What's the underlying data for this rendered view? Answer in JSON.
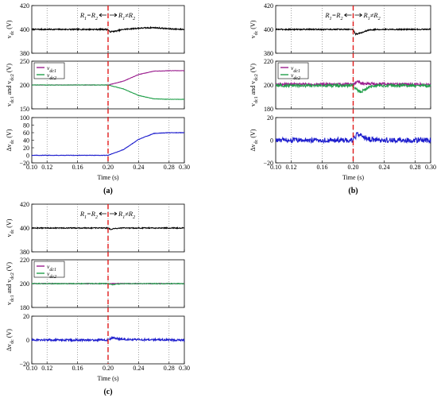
{
  "chart_data": [
    {
      "type": "line",
      "caption": "(a)",
      "xlabel": "Time (s)",
      "xlim": [
        0.1,
        0.3
      ],
      "x_ticks": [
        "0.10",
        "0.12",
        "0.16",
        "0.20",
        "0.24",
        "0.28",
        "0.30"
      ],
      "event_time": 0.2,
      "annotation_left": "R1=R2",
      "annotation_right": "R1≠R2",
      "subplots": [
        {
          "ylabel": "vdc (V)",
          "ylim": [
            380,
            420
          ],
          "y_ticks": [
            "420",
            "400",
            "380"
          ],
          "series": [
            {
              "color": "#000000",
              "points": [
                [
                  0.1,
                  400
                ],
                [
                  0.2,
                  400
                ],
                [
                  0.202,
                  398
                ],
                [
                  0.21,
                  398.5
                ],
                [
                  0.22,
                  400
                ],
                [
                  0.24,
                  401
                ],
                [
                  0.26,
                  401.5
                ],
                [
                  0.28,
                  400.5
                ],
                [
                  0.3,
                  400
                ]
              ],
              "noise": 0.5
            }
          ]
        },
        {
          "ylabel": "vdc1 and vdc2 (V)",
          "ylim": [
            150,
            250
          ],
          "y_ticks": [
            "250",
            "200",
            "150"
          ],
          "legend": [
            "vdc1",
            "vdc2"
          ],
          "series": [
            {
              "name": "vdc1",
              "color": "#9b1f8f",
              "points": [
                [
                  0.1,
                  200
                ],
                [
                  0.2,
                  200
                ],
                [
                  0.22,
                  208
                ],
                [
                  0.24,
                  222
                ],
                [
                  0.26,
                  229
                ],
                [
                  0.28,
                  230
                ],
                [
                  0.3,
                  230
                ]
              ],
              "noise": 0.4
            },
            {
              "name": "vdc2",
              "color": "#22a04b",
              "points": [
                [
                  0.1,
                  200
                ],
                [
                  0.2,
                  200
                ],
                [
                  0.22,
                  192
                ],
                [
                  0.24,
                  178
                ],
                [
                  0.26,
                  171
                ],
                [
                  0.28,
                  170
                ],
                [
                  0.3,
                  170
                ]
              ],
              "noise": 0.4
            }
          ]
        },
        {
          "ylabel": "Δvdc (V)",
          "ylim": [
            -20,
            100
          ],
          "y_ticks": [
            "100",
            "80",
            "60",
            "40",
            "20",
            "0",
            "−20"
          ],
          "series": [
            {
              "color": "#1c1ccd",
              "points": [
                [
                  0.1,
                  0
                ],
                [
                  0.2,
                  0
                ],
                [
                  0.22,
                  15
                ],
                [
                  0.24,
                  42
                ],
                [
                  0.26,
                  58
                ],
                [
                  0.28,
                  60
                ],
                [
                  0.3,
                  60
                ]
              ],
              "noise": 0.6
            }
          ]
        }
      ]
    },
    {
      "type": "line",
      "caption": "(b)",
      "xlabel": "Time (s)",
      "xlim": [
        0.1,
        0.3
      ],
      "x_ticks": [
        "0.10",
        "0.12",
        "0.16",
        "0.20",
        "0.24",
        "0.28",
        "0.30"
      ],
      "event_time": 0.2,
      "annotation_left": "R1=R2",
      "annotation_right": "R1≠R2",
      "subplots": [
        {
          "ylabel": "vdc (V)",
          "ylim": [
            380,
            420
          ],
          "y_ticks": [
            "420",
            "400",
            "380"
          ],
          "series": [
            {
              "color": "#000000",
              "points": [
                [
                  0.1,
                  400
                ],
                [
                  0.2,
                  400
                ],
                [
                  0.203,
                  396
                ],
                [
                  0.21,
                  397
                ],
                [
                  0.22,
                  399.5
                ],
                [
                  0.23,
                  400
                ],
                [
                  0.3,
                  400
                ]
              ],
              "noise": 0.5
            }
          ]
        },
        {
          "ylabel": "vdc1 and vdc2 (V)",
          "ylim": [
            180,
            220
          ],
          "y_ticks": [
            "220",
            "200",
            "180"
          ],
          "legend": [
            "vdc1",
            "vdc2"
          ],
          "series": [
            {
              "name": "vdc1",
              "color": "#9b1f8f",
              "points": [
                [
                  0.1,
                  200.5
                ],
                [
                  0.2,
                  200.5
                ],
                [
                  0.205,
                  203
                ],
                [
                  0.21,
                  201.5
                ],
                [
                  0.22,
                  201
                ],
                [
                  0.3,
                  200.5
                ]
              ],
              "noise": 1.2
            },
            {
              "name": "vdc2",
              "color": "#22a04b",
              "points": [
                [
                  0.1,
                  199.5
                ],
                [
                  0.2,
                  199.5
                ],
                [
                  0.205,
                  196
                ],
                [
                  0.21,
                  194
                ],
                [
                  0.22,
                  198
                ],
                [
                  0.23,
                  199.5
                ],
                [
                  0.3,
                  199.5
                ]
              ],
              "noise": 1.2
            }
          ]
        },
        {
          "ylabel": "Δvdc (V)",
          "ylim": [
            -20,
            20
          ],
          "y_ticks": [
            "20",
            "0",
            "−20"
          ],
          "series": [
            {
              "color": "#1c1ccd",
              "points": [
                [
                  0.1,
                  0
                ],
                [
                  0.2,
                  0
                ],
                [
                  0.205,
                  5
                ],
                [
                  0.21,
                  4
                ],
                [
                  0.22,
                  1
                ],
                [
                  0.23,
                  0
                ],
                [
                  0.3,
                  0
                ]
              ],
              "noise": 2.2
            }
          ]
        }
      ]
    },
    {
      "type": "line",
      "caption": "(c)",
      "xlabel": "Time (s)",
      "xlim": [
        0.1,
        0.3
      ],
      "x_ticks": [
        "0.10",
        "0.12",
        "0.16",
        "0.20",
        "0.24",
        "0.28",
        "0.30"
      ],
      "event_time": 0.2,
      "annotation_left": "R1=R2",
      "annotation_right": "R1≠R2",
      "subplots": [
        {
          "ylabel": "vdc (V)",
          "ylim": [
            380,
            420
          ],
          "y_ticks": [
            "420",
            "400",
            "380"
          ],
          "series": [
            {
              "color": "#000000",
              "points": [
                [
                  0.1,
                  400
                ],
                [
                  0.2,
                  400
                ],
                [
                  0.203,
                  399
                ],
                [
                  0.21,
                  399.5
                ],
                [
                  0.22,
                  400
                ],
                [
                  0.3,
                  400
                ]
              ],
              "noise": 0.4
            }
          ]
        },
        {
          "ylabel": "vdc1 and vdc2 (V)",
          "ylim": [
            180,
            220
          ],
          "y_ticks": [
            "220",
            "200",
            "180"
          ],
          "legend": [
            "vdc1",
            "vdc2"
          ],
          "series": [
            {
              "name": "vdc1",
              "color": "#9b1f8f",
              "points": [
                [
                  0.1,
                  200
                ],
                [
                  0.3,
                  200
                ]
              ],
              "noise": 0.3
            },
            {
              "name": "vdc2",
              "color": "#22a04b",
              "points": [
                [
                  0.1,
                  200
                ],
                [
                  0.2,
                  200
                ],
                [
                  0.205,
                  199
                ],
                [
                  0.21,
                  199.5
                ],
                [
                  0.22,
                  200
                ],
                [
                  0.3,
                  200
                ]
              ],
              "noise": 0.3
            }
          ]
        },
        {
          "ylabel": "Δvdc (V)",
          "ylim": [
            -20,
            20
          ],
          "y_ticks": [
            "20",
            "0",
            "−20"
          ],
          "series": [
            {
              "color": "#1c1ccd",
              "points": [
                [
                  0.1,
                  0
                ],
                [
                  0.2,
                  0
                ],
                [
                  0.205,
                  2
                ],
                [
                  0.21,
                  1.5
                ],
                [
                  0.22,
                  0.5
                ],
                [
                  0.3,
                  0
                ]
              ],
              "noise": 0.8
            }
          ]
        }
      ]
    }
  ]
}
